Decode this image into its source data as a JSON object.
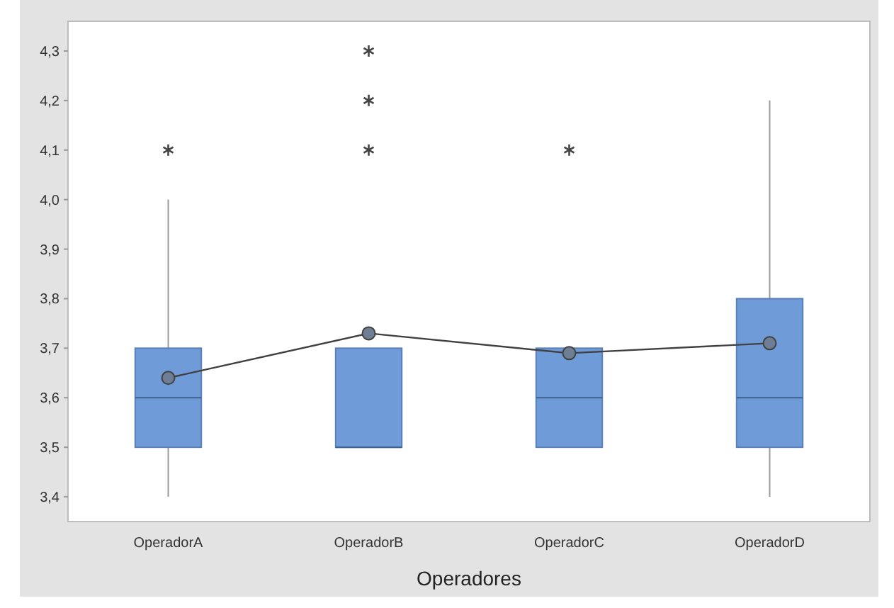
{
  "chart_data": {
    "type": "box",
    "xlabel": "Operadores",
    "categories": [
      "OperadorA",
      "OperadorB",
      "OperadorC",
      "OperadorD"
    ],
    "series": [
      {
        "color": "#6f9bd8",
        "boxes": [
          {
            "low": 3.4,
            "q1": 3.5,
            "median": 3.6,
            "q3": 3.7,
            "high": 4.0,
            "outliers": [
              4.1
            ]
          },
          {
            "low": 3.5,
            "q1": 3.5,
            "median": 3.5,
            "q3": 3.7,
            "high": 3.7,
            "outliers": [
              4.1,
              4.2,
              4.3
            ]
          },
          {
            "low": 3.5,
            "q1": 3.5,
            "median": 3.6,
            "q3": 3.7,
            "high": 3.7,
            "outliers": [
              4.1
            ]
          },
          {
            "low": 3.4,
            "q1": 3.5,
            "median": 3.6,
            "q3": 3.8,
            "high": 4.2
          }
        ]
      },
      {
        "type": "line",
        "color": "#404040",
        "marker": "circle",
        "values": [
          3.64,
          3.73,
          3.69,
          3.71
        ]
      }
    ],
    "ylim": [
      3.35,
      4.36
    ],
    "yticks": [
      {
        "value": 3.4,
        "label": "3,4"
      },
      {
        "value": 3.5,
        "label": "3,5"
      },
      {
        "value": 3.6,
        "label": "3,6"
      },
      {
        "value": 3.7,
        "label": "3,7"
      },
      {
        "value": 3.8,
        "label": "3,8"
      },
      {
        "value": 3.9,
        "label": "3,9"
      },
      {
        "value": 4.0,
        "label": "4,0"
      },
      {
        "value": 4.1,
        "label": "4,1"
      },
      {
        "value": 4.2,
        "label": "4,2"
      },
      {
        "value": 4.3,
        "label": "4,3"
      }
    ],
    "grid": false
  }
}
